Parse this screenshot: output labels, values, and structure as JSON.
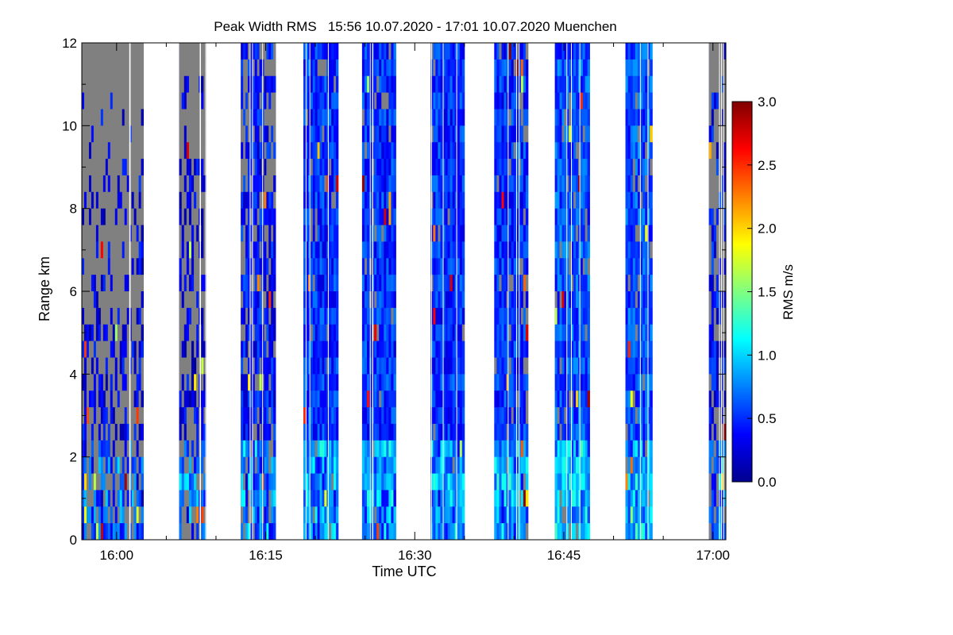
{
  "chart_data": {
    "type": "heatmap",
    "title": "Peak Width RMS   15:56 10.07.2020 - 17:01 10.07.2020 Muenchen",
    "xlabel": "Time UTC",
    "ylabel": "Range km",
    "colorbar_label": "RMS m/s",
    "x_range_minutes": [
      -3.5,
      61.3
    ],
    "x_ticks": [
      {
        "label": "16:00",
        "minute": 0
      },
      {
        "label": "16:15",
        "minute": 15
      },
      {
        "label": "16:30",
        "minute": 30
      },
      {
        "label": "16:45",
        "minute": 45
      },
      {
        "label": "17:00",
        "minute": 60
      }
    ],
    "ylim": [
      0,
      12
    ],
    "y_ticks": [
      "0",
      "2",
      "4",
      "6",
      "8",
      "10",
      "12"
    ],
    "colorbar_range": [
      0,
      3
    ],
    "colorbar_ticks": [
      "0.0",
      "0.5",
      "1.0",
      "1.5",
      "2.0",
      "2.5",
      "3.0"
    ],
    "no_data_color": "#808080",
    "colormap": [
      "#00008f",
      "#0000ff",
      "#0080ff",
      "#00ffff",
      "#80ff80",
      "#ffff00",
      "#ff8000",
      "#ff0000",
      "#800000"
    ],
    "segments": [
      {
        "start_min": -3.5,
        "end_min": 2.7,
        "typical_rms": 0.3,
        "gray_fraction": 0.75
      },
      {
        "start_min": 6.3,
        "end_min": 9.0,
        "typical_rms": 0.3,
        "gray_fraction": 0.65
      },
      {
        "start_min": 12.5,
        "end_min": 16.0,
        "typical_rms": 0.4,
        "gray_fraction": 0.3
      },
      {
        "start_min": 18.8,
        "end_min": 22.3,
        "typical_rms": 0.5,
        "gray_fraction": 0.08
      },
      {
        "start_min": 24.7,
        "end_min": 28.1,
        "typical_rms": 0.5,
        "gray_fraction": 0.05
      },
      {
        "start_min": 31.6,
        "end_min": 35.0,
        "typical_rms": 0.5,
        "gray_fraction": 0.03
      },
      {
        "start_min": 38.0,
        "end_min": 41.4,
        "typical_rms": 0.5,
        "gray_fraction": 0.1
      },
      {
        "start_min": 44.1,
        "end_min": 47.6,
        "typical_rms": 0.6,
        "gray_fraction": 0.08
      },
      {
        "start_min": 51.2,
        "end_min": 53.9,
        "typical_rms": 0.6,
        "gray_fraction": 0.05
      },
      {
        "start_min": 59.6,
        "end_min": 61.3,
        "typical_rms": 0.4,
        "gray_fraction": 0.6
      }
    ]
  }
}
